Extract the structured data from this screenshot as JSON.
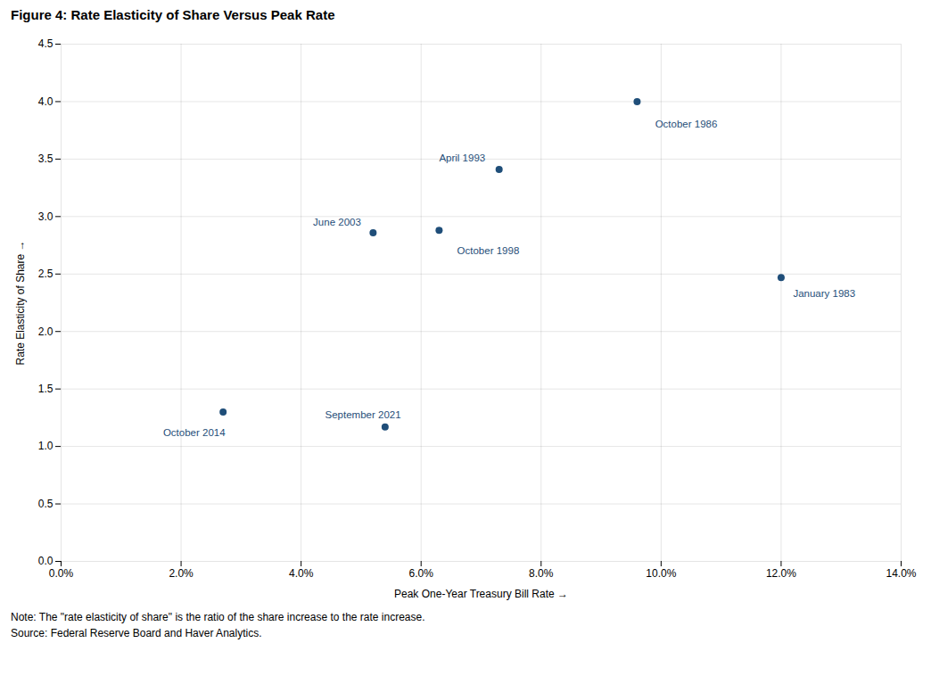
{
  "chart_data": {
    "type": "scatter",
    "title": "Figure 4: Rate Elasticity of Share Versus Peak Rate",
    "xlabel": "Peak One-Year Treasury Bill Rate",
    "ylabel": "Rate Elasticity of Share",
    "notes": [
      "Note: The \"rate elasticity of share\" is the ratio of the share increase to the rate increase.",
      "Source: Federal Reserve Board and Haver Analytics."
    ],
    "x": [
      0.12,
      0.096,
      0.073,
      0.063,
      0.052,
      0.027,
      0.054
    ],
    "values": [
      2.47,
      4.0,
      3.41,
      2.88,
      2.86,
      1.3,
      1.17
    ],
    "annotations": [
      {
        "text": "January 1983",
        "x": 0.122,
        "y": 2.33
      },
      {
        "text": "October 1986",
        "x": 0.099,
        "y": 3.8
      },
      {
        "text": "April 1993",
        "x": 0.063,
        "y": 3.51
      },
      {
        "text": "October 1998",
        "x": 0.066,
        "y": 2.7
      },
      {
        "text": "June 2003",
        "x": 0.042,
        "y": 2.95
      },
      {
        "text": "October 2014",
        "x": 0.017,
        "y": 1.12
      },
      {
        "text": "September 2021",
        "x": 0.044,
        "y": 1.27
      }
    ],
    "color": "#1f4e79",
    "xlim": [
      0.0,
      0.14
    ],
    "ylim": [
      0.0,
      4.5
    ],
    "xticks": [
      {
        "value": 0.0,
        "label": "0.0%"
      },
      {
        "value": 0.02,
        "label": "2.0%"
      },
      {
        "value": 0.04,
        "label": "4.0%"
      },
      {
        "value": 0.06,
        "label": "6.0%"
      },
      {
        "value": 0.08,
        "label": "8.0%"
      },
      {
        "value": 0.1,
        "label": "10.0%"
      },
      {
        "value": 0.12,
        "label": "12.0%"
      },
      {
        "value": 0.14,
        "label": "14.0%"
      }
    ],
    "yticks": [
      {
        "value": 0.0,
        "label": "0.0"
      },
      0.5,
      {
        "value": 1.0,
        "label": "1.0"
      },
      1.5,
      {
        "value": 2.0,
        "label": "2.0"
      },
      2.5,
      {
        "value": 3.0,
        "label": "3.0"
      },
      3.5,
      {
        "value": 4.0,
        "label": "4.0"
      },
      4.5
    ],
    "grid": true
  }
}
